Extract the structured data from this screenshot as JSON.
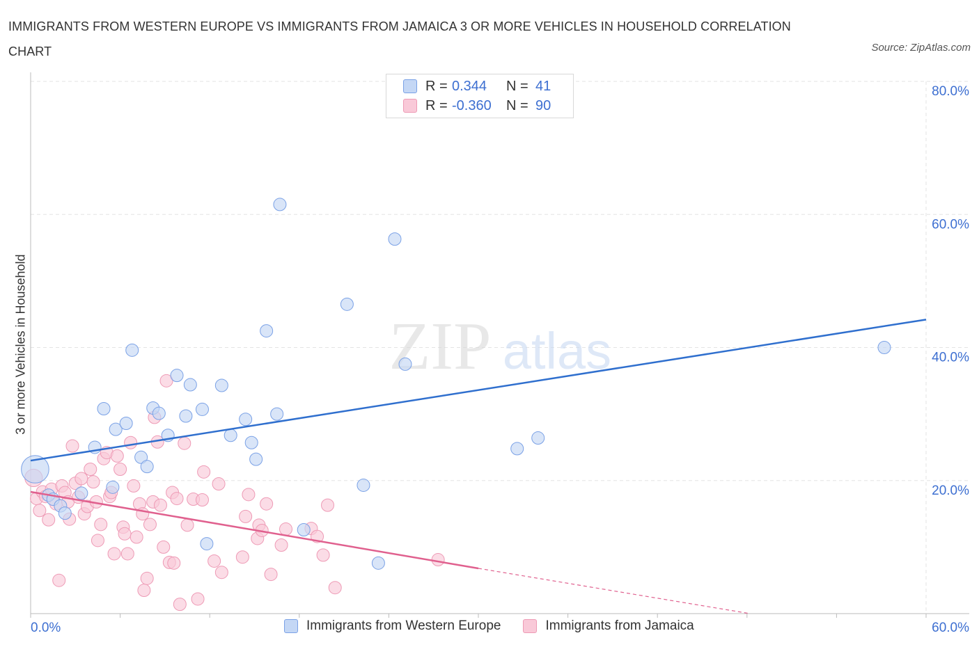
{
  "header": {
    "title": "IMMIGRANTS FROM WESTERN EUROPE VS IMMIGRANTS FROM JAMAICA 3 OR MORE VEHICLES IN HOUSEHOLD CORRELATION CHART",
    "source": "Source: ZipAtlas.com"
  },
  "watermark": {
    "zip": "ZIP",
    "atlas": "atlas"
  },
  "legend": {
    "r_label": "R =",
    "n_label": "N =",
    "rows": [
      {
        "r": "0.344",
        "n": "41",
        "fill": "#c4d7f5",
        "stroke": "#7aa1e6"
      },
      {
        "r": "-0.360",
        "n": "90",
        "fill": "#f9c9d8",
        "stroke": "#ee9ab5"
      }
    ]
  },
  "colors": {
    "blue_fill": "#c4d7f5",
    "blue_stroke": "#7aa1e6",
    "blue_line": "#2f6fce",
    "pink_fill": "#f9c9d8",
    "pink_stroke": "#ee9ab5",
    "pink_line": "#e0608e",
    "tick_text": "#3d6fd1",
    "grid": "#e3e3e3"
  },
  "chart_data": {
    "type": "scatter",
    "title": "IMMIGRANTS FROM WESTERN EUROPE VS IMMIGRANTS FROM JAMAICA 3 OR MORE VEHICLES IN HOUSEHOLD CORRELATION CHART",
    "xlabel": "",
    "ylabel": "3 or more Vehicles in Household",
    "xlim": [
      0,
      60
    ],
    "ylim": [
      0,
      80
    ],
    "x_tick_labels": [
      "0.0%",
      "60.0%"
    ],
    "y_ticks": [
      20,
      40,
      60,
      80
    ],
    "y_tick_labels": [
      "20.0%",
      "40.0%",
      "60.0%",
      "80.0%"
    ],
    "grid": true,
    "legend_position": "top-center",
    "series": [
      {
        "name": "Immigrants from Western Europe",
        "r": 0.344,
        "n": 41,
        "trend": {
          "x": [
            0,
            60
          ],
          "y": [
            23.0,
            44.2
          ]
        },
        "points": [
          [
            0.3,
            21.7,
            2.2
          ],
          [
            1.2,
            17.8,
            1
          ],
          [
            1.5,
            17.2,
            1
          ],
          [
            2.0,
            16.2,
            1
          ],
          [
            2.3,
            15.1,
            1
          ],
          [
            3.4,
            18.1,
            1
          ],
          [
            4.3,
            25.0,
            1
          ],
          [
            4.9,
            30.8,
            1
          ],
          [
            5.5,
            19.0,
            1
          ],
          [
            5.7,
            27.7,
            1
          ],
          [
            6.4,
            28.6,
            1
          ],
          [
            6.8,
            39.6,
            1
          ],
          [
            7.4,
            23.5,
            1
          ],
          [
            7.8,
            22.1,
            1
          ],
          [
            8.2,
            30.9,
            1
          ],
          [
            8.6,
            30.1,
            1
          ],
          [
            9.2,
            26.8,
            1
          ],
          [
            9.8,
            35.8,
            1
          ],
          [
            10.4,
            29.7,
            1
          ],
          [
            10.7,
            34.4,
            1
          ],
          [
            11.5,
            30.7,
            1
          ],
          [
            11.8,
            10.5,
            1
          ],
          [
            12.8,
            34.3,
            1
          ],
          [
            13.4,
            26.8,
            1
          ],
          [
            14.4,
            29.2,
            1
          ],
          [
            14.8,
            25.7,
            1
          ],
          [
            15.1,
            23.2,
            1
          ],
          [
            15.8,
            42.5,
            1
          ],
          [
            16.5,
            30.0,
            1
          ],
          [
            16.7,
            61.5,
            1
          ],
          [
            18.3,
            12.6,
            1
          ],
          [
            21.2,
            46.5,
            1
          ],
          [
            22.3,
            19.3,
            1
          ],
          [
            23.3,
            7.6,
            1
          ],
          [
            24.4,
            56.3,
            1
          ],
          [
            25.1,
            37.5,
            1
          ],
          [
            32.6,
            24.8,
            1
          ],
          [
            34.0,
            26.4,
            1
          ],
          [
            57.2,
            40.0,
            1
          ]
        ]
      },
      {
        "name": "Immigrants from Jamaica",
        "r": -0.36,
        "n": 90,
        "trend": {
          "x": [
            0,
            30
          ],
          "y": [
            18.3,
            6.8
          ]
        },
        "trend_extension": {
          "x": [
            30,
            48.2
          ],
          "y": [
            6.8,
            0
          ]
        },
        "points": [
          [
            0.2,
            20.4,
            1.4
          ],
          [
            0.4,
            17.3,
            1
          ],
          [
            0.6,
            15.5,
            1
          ],
          [
            0.8,
            18.3,
            1
          ],
          [
            1.0,
            17.6,
            1
          ],
          [
            1.2,
            14.1,
            1
          ],
          [
            1.4,
            18.7,
            1
          ],
          [
            1.7,
            16.5,
            1
          ],
          [
            1.9,
            5.0,
            1
          ],
          [
            2.1,
            19.2,
            1
          ],
          [
            2.3,
            18.2,
            1
          ],
          [
            2.5,
            16.8,
            1
          ],
          [
            2.6,
            14.2,
            1
          ],
          [
            2.8,
            25.2,
            1
          ],
          [
            3.0,
            19.6,
            1
          ],
          [
            3.2,
            17.5,
            1
          ],
          [
            3.4,
            20.3,
            1
          ],
          [
            3.6,
            15.0,
            1
          ],
          [
            3.8,
            16.1,
            1
          ],
          [
            4.0,
            21.7,
            1
          ],
          [
            4.2,
            19.8,
            1
          ],
          [
            4.4,
            16.8,
            1
          ],
          [
            4.5,
            11.0,
            1
          ],
          [
            4.7,
            13.4,
            1
          ],
          [
            4.9,
            23.3,
            1
          ],
          [
            5.1,
            24.2,
            1
          ],
          [
            5.3,
            17.6,
            1
          ],
          [
            5.4,
            18.2,
            1
          ],
          [
            5.6,
            9.0,
            1
          ],
          [
            5.8,
            23.7,
            1
          ],
          [
            6.0,
            21.7,
            1
          ],
          [
            6.2,
            13.0,
            1
          ],
          [
            6.3,
            12.0,
            1
          ],
          [
            6.5,
            9.0,
            1
          ],
          [
            6.7,
            25.7,
            1
          ],
          [
            6.9,
            19.2,
            1
          ],
          [
            7.1,
            11.5,
            1
          ],
          [
            7.3,
            16.5,
            1
          ],
          [
            7.5,
            15.0,
            1
          ],
          [
            7.6,
            3.5,
            1
          ],
          [
            7.8,
            5.3,
            1
          ],
          [
            8.0,
            13.4,
            1
          ],
          [
            8.2,
            16.8,
            1
          ],
          [
            8.3,
            29.5,
            1
          ],
          [
            8.5,
            25.8,
            1
          ],
          [
            8.7,
            16.3,
            1
          ],
          [
            8.9,
            10.0,
            1
          ],
          [
            9.1,
            35.0,
            1
          ],
          [
            9.3,
            7.7,
            1
          ],
          [
            9.5,
            18.2,
            1
          ],
          [
            9.6,
            7.6,
            1
          ],
          [
            9.8,
            17.3,
            1
          ],
          [
            10.0,
            1.4,
            1
          ],
          [
            10.3,
            25.6,
            1
          ],
          [
            10.5,
            13.3,
            1
          ],
          [
            10.9,
            17.2,
            1
          ],
          [
            11.2,
            2.2,
            1
          ],
          [
            11.5,
            17.1,
            1
          ],
          [
            11.6,
            21.3,
            1
          ],
          [
            12.3,
            7.9,
            1
          ],
          [
            12.6,
            19.5,
            1
          ],
          [
            12.8,
            6.2,
            1
          ],
          [
            14.2,
            8.5,
            1
          ],
          [
            14.4,
            14.6,
            1
          ],
          [
            14.6,
            17.9,
            1
          ],
          [
            15.2,
            11.3,
            1
          ],
          [
            15.3,
            13.3,
            1
          ],
          [
            15.5,
            12.5,
            1
          ],
          [
            15.8,
            16.5,
            1
          ],
          [
            16.1,
            5.9,
            1
          ],
          [
            16.8,
            10.3,
            1
          ],
          [
            17.1,
            12.7,
            1
          ],
          [
            18.8,
            12.8,
            1
          ],
          [
            19.2,
            11.6,
            1
          ],
          [
            19.6,
            8.8,
            1
          ],
          [
            19.9,
            16.3,
            1
          ],
          [
            20.4,
            3.9,
            1
          ],
          [
            27.3,
            8.1,
            1
          ]
        ]
      }
    ]
  },
  "bottom_legend": [
    {
      "label": "Immigrants from Western Europe"
    },
    {
      "label": "Immigrants from Jamaica"
    }
  ]
}
